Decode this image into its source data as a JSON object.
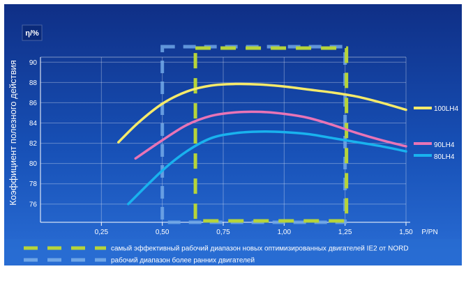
{
  "chart_data": {
    "type": "line",
    "y_axis_badge": "η/%",
    "ylabel": "Коэффициент полезного действия",
    "xlabel": "P/PN",
    "x_ticks": [
      "0,25",
      "0,50",
      "0,75",
      "1,00",
      "1,25",
      "1,50"
    ],
    "x_tick_values": [
      0.25,
      0.5,
      0.75,
      1.0,
      1.25,
      1.5
    ],
    "y_ticks": [
      "76",
      "78",
      "80",
      "82",
      "84",
      "86",
      "88",
      "90"
    ],
    "y_tick_values": [
      76,
      78,
      80,
      82,
      84,
      86,
      88,
      90
    ],
    "xlim": [
      0.0,
      1.5
    ],
    "ylim": [
      74.2,
      90.5
    ],
    "grid": true,
    "series": [
      {
        "name": "100LH4",
        "color": "#f6ea6a",
        "x": [
          0.32,
          0.4,
          0.5,
          0.6,
          0.7,
          0.8,
          0.9,
          1.0,
          1.1,
          1.2,
          1.3,
          1.4,
          1.5
        ],
        "y": [
          82.1,
          84.0,
          85.9,
          87.1,
          87.7,
          87.85,
          87.8,
          87.6,
          87.3,
          87.0,
          86.6,
          86.0,
          85.3
        ]
      },
      {
        "name": "90LH4",
        "color": "#e874b6",
        "x": [
          0.39,
          0.5,
          0.6,
          0.7,
          0.8,
          0.9,
          1.0,
          1.1,
          1.2,
          1.3,
          1.4,
          1.5
        ],
        "y": [
          80.5,
          82.3,
          83.8,
          84.7,
          85.05,
          85.1,
          84.9,
          84.5,
          83.8,
          83.0,
          82.3,
          81.7
        ]
      },
      {
        "name": "80LH4",
        "color": "#19b2ee",
        "x": [
          0.36,
          0.5,
          0.6,
          0.7,
          0.8,
          0.9,
          1.0,
          1.1,
          1.2,
          1.3,
          1.4,
          1.5
        ],
        "y": [
          76.0,
          79.3,
          81.2,
          82.5,
          83.0,
          83.15,
          83.1,
          82.9,
          82.5,
          82.1,
          81.7,
          81.2
        ]
      }
    ],
    "ranges": [
      {
        "x0": 0.63,
        "x1": 1.25,
        "color": "#b6d43a",
        "style": "dashed"
      },
      {
        "x0": 0.5,
        "x1": 1.25,
        "color": "#6fa6e6",
        "style": "dashed"
      }
    ],
    "legend": [
      {
        "label": "самый эффективный рабочий диапазон новых оптимизированных двигателей IE2 от NORD",
        "color": "#b6d43a"
      },
      {
        "label": "рабочий диапазон более ранних двигателей",
        "color": "#6fa6e6"
      }
    ]
  }
}
